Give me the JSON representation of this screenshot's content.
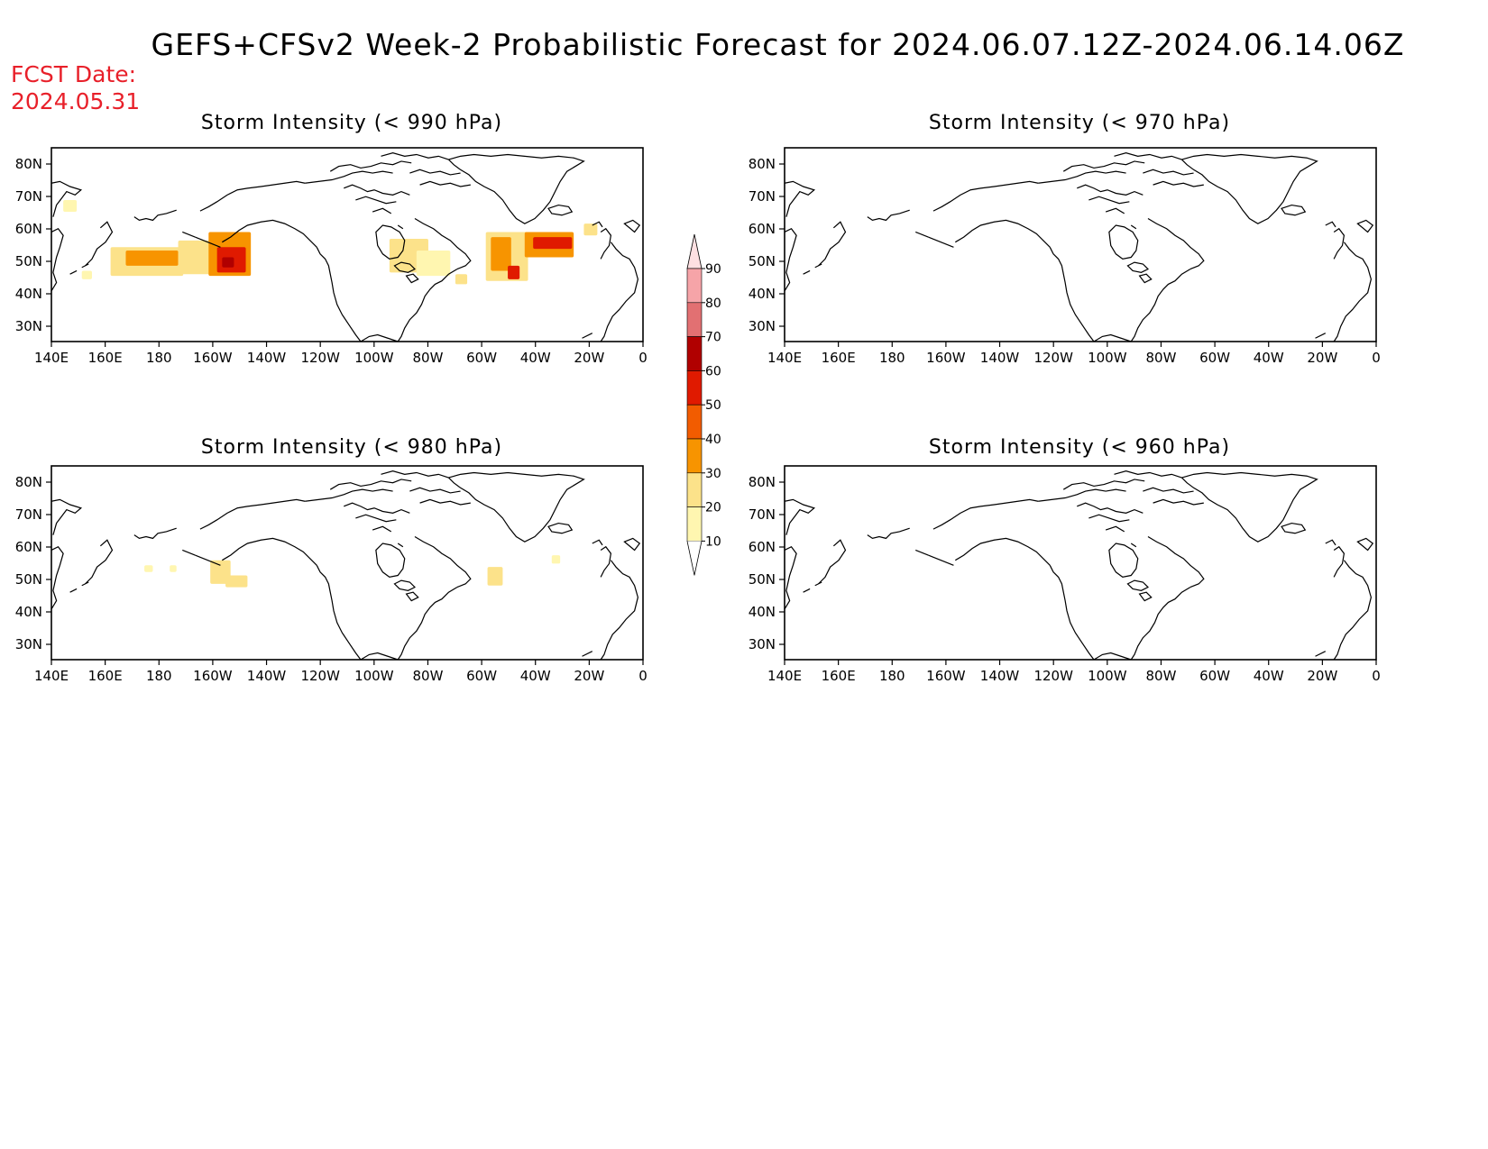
{
  "title": "GEFS+CFSv2 Week-2 Probabilistic Forecast for 2024.06.07.12Z-2024.06.14.06Z",
  "fcst_label": "FCST Date:",
  "fcst_date": "2024.05.31",
  "lon_ticks": [
    "140E",
    "160E",
    "180",
    "160W",
    "140W",
    "120W",
    "100W",
    "80W",
    "60W",
    "40W",
    "20W",
    "0"
  ],
  "lat_ticks": [
    "80N",
    "70N",
    "60N",
    "50N",
    "40N",
    "30N"
  ],
  "panels": [
    {
      "title": "Storm Intensity (< 990 hPa)"
    },
    {
      "title": "Storm Intensity (< 970 hPa)"
    },
    {
      "title": "Storm Intensity (< 980 hPa)"
    },
    {
      "title": "Storm Intensity (< 960 hPa)"
    }
  ],
  "colorbar": {
    "labels": [
      "90",
      "80",
      "70",
      "60",
      "50",
      "40",
      "30",
      "20",
      "10"
    ],
    "colors": [
      "#f6a4a8",
      "#e27072",
      "#b00000",
      "#e01a00",
      "#f25c00",
      "#f79400",
      "#fce28a",
      "#fff6b0"
    ]
  }
}
